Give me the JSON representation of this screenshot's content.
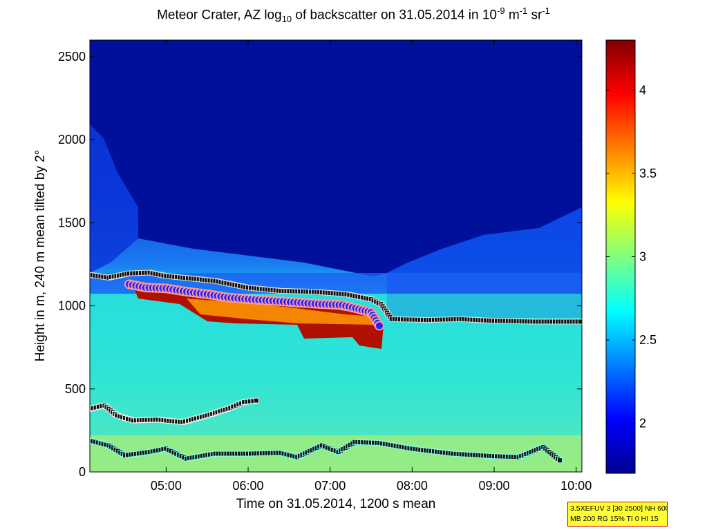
{
  "chart_data": {
    "type": "heatmap",
    "title": {
      "pre": "Meteor Crater, AZ log",
      "sub": "10",
      "mid": " of backscatter on 31.05.2014 in 10",
      "sup1": "-9",
      "unit_m": " m",
      "sup2": "-1",
      "unit_sr": " sr",
      "sup3": "-1"
    },
    "xlabel": "Time on 31.05.2014, 1200 s mean",
    "ylabel": "Height in m, 240 m mean tilted by 2°",
    "x_hours_range": [
      4.07,
      10.07
    ],
    "ylim": [
      0,
      2600
    ],
    "x_ticks": [
      {
        "h": 5,
        "label": "05:00"
      },
      {
        "h": 6,
        "label": "06:00"
      },
      {
        "h": 7,
        "label": "07:00"
      },
      {
        "h": 8,
        "label": "08:00"
      },
      {
        "h": 9,
        "label": "09:00"
      },
      {
        "h": 10,
        "label": "10:00"
      }
    ],
    "y_ticks": [
      0,
      500,
      1000,
      1500,
      2000,
      2500
    ],
    "colorbar": {
      "colormap": "jet",
      "range": [
        1.7,
        4.3
      ],
      "ticks": [
        "2",
        "2.5",
        "3",
        "3.5",
        "4"
      ]
    },
    "layer_tops": [
      {
        "h": 4.1,
        "y": 1185
      },
      {
        "h": 4.3,
        "y": 1170
      },
      {
        "h": 4.55,
        "y": 1195
      },
      {
        "h": 4.8,
        "y": 1200
      },
      {
        "h": 5.0,
        "y": 1180
      },
      {
        "h": 5.3,
        "y": 1165
      },
      {
        "h": 5.6,
        "y": 1150
      },
      {
        "h": 6.0,
        "y": 1110
      },
      {
        "h": 6.4,
        "y": 1090
      },
      {
        "h": 6.8,
        "y": 1085
      },
      {
        "h": 7.2,
        "y": 1070
      },
      {
        "h": 7.5,
        "y": 1040
      },
      {
        "h": 7.62,
        "y": 1010
      },
      {
        "h": 7.75,
        "y": 920
      },
      {
        "h": 8.2,
        "y": 915
      },
      {
        "h": 8.6,
        "y": 920
      },
      {
        "h": 9.0,
        "y": 910
      },
      {
        "h": 9.5,
        "y": 905
      },
      {
        "h": 10.05,
        "y": 905
      }
    ],
    "cloud_bases": [
      {
        "h": 4.55,
        "y": 1130
      },
      {
        "h": 4.75,
        "y": 1110
      },
      {
        "h": 5.0,
        "y": 1105
      },
      {
        "h": 5.25,
        "y": 1085
      },
      {
        "h": 5.5,
        "y": 1070
      },
      {
        "h": 5.75,
        "y": 1050
      },
      {
        "h": 6.0,
        "y": 1040
      },
      {
        "h": 6.3,
        "y": 1030
      },
      {
        "h": 6.6,
        "y": 1020
      },
      {
        "h": 6.9,
        "y": 1010
      },
      {
        "h": 7.15,
        "y": 1005
      },
      {
        "h": 7.35,
        "y": 980
      },
      {
        "h": 7.5,
        "y": 960
      },
      {
        "h": 7.6,
        "y": 880
      }
    ],
    "layer_mid": [
      {
        "h": 4.07,
        "y": 380
      },
      {
        "h": 4.25,
        "y": 400
      },
      {
        "h": 4.4,
        "y": 340
      },
      {
        "h": 4.6,
        "y": 310
      },
      {
        "h": 4.9,
        "y": 315
      },
      {
        "h": 5.2,
        "y": 300
      },
      {
        "h": 5.5,
        "y": 340
      },
      {
        "h": 5.75,
        "y": 380
      },
      {
        "h": 5.95,
        "y": 420
      },
      {
        "h": 6.1,
        "y": 430
      }
    ],
    "layer_low": [
      {
        "h": 4.07,
        "y": 190
      },
      {
        "h": 4.3,
        "y": 160
      },
      {
        "h": 4.5,
        "y": 100
      },
      {
        "h": 4.8,
        "y": 120
      },
      {
        "h": 5.0,
        "y": 140
      },
      {
        "h": 5.25,
        "y": 80
      },
      {
        "h": 5.6,
        "y": 110
      },
      {
        "h": 6.0,
        "y": 110
      },
      {
        "h": 6.4,
        "y": 115
      },
      {
        "h": 6.6,
        "y": 90
      },
      {
        "h": 6.9,
        "y": 160
      },
      {
        "h": 7.1,
        "y": 120
      },
      {
        "h": 7.3,
        "y": 180
      },
      {
        "h": 7.6,
        "y": 175
      },
      {
        "h": 8.0,
        "y": 140
      },
      {
        "h": 8.5,
        "y": 110
      },
      {
        "h": 9.0,
        "y": 95
      },
      {
        "h": 9.3,
        "y": 90
      },
      {
        "h": 9.6,
        "y": 150
      },
      {
        "h": 9.8,
        "y": 70
      }
    ]
  },
  "stamp": {
    "line1": "3.5XEFUV 3 [30 2500] NH 600",
    "line2": "MB 200 RG 15% TI 0 HI 15"
  }
}
